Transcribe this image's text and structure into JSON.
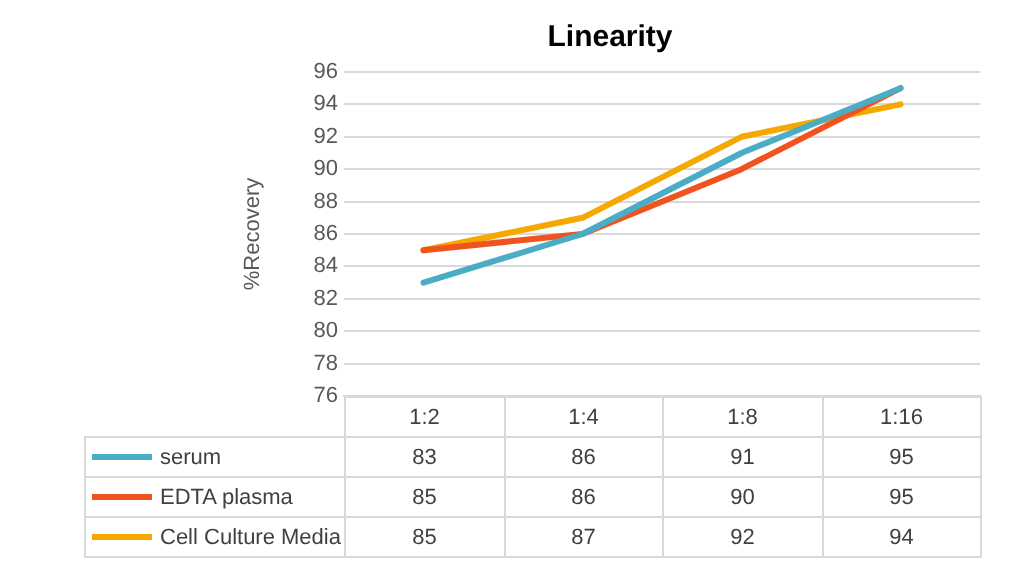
{
  "chart_data": {
    "type": "line",
    "title": "Linearity",
    "ylabel": "%Recovery",
    "categories": [
      "1:2",
      "1:4",
      "1:8",
      "1:16"
    ],
    "series": [
      {
        "name": "serum",
        "color": "#4bacc6",
        "values": [
          83,
          86,
          91,
          95
        ]
      },
      {
        "name": "EDTA plasma",
        "color": "#f0541e",
        "values": [
          85,
          86,
          90,
          95
        ]
      },
      {
        "name": "Cell Culture Media",
        "color": "#f5a800",
        "values": [
          85,
          87,
          92,
          94
        ]
      }
    ],
    "ylim": [
      76,
      96
    ],
    "yticks": [
      76,
      78,
      80,
      82,
      84,
      86,
      88,
      90,
      92,
      94,
      96
    ],
    "grid": "y",
    "legend": "bottom",
    "data_labels": true,
    "marker": "none",
    "line_style": "solid"
  }
}
